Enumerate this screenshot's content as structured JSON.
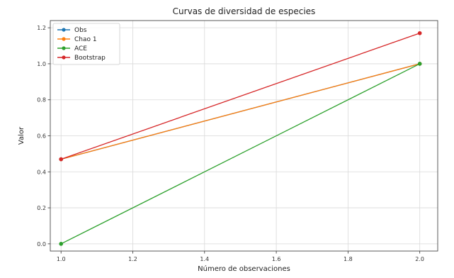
{
  "chart_data": {
    "type": "line",
    "title": "Curvas de diversidad de especies",
    "xlabel": "Número de observaciones",
    "ylabel": "Valor",
    "x": [
      1.0,
      2.0
    ],
    "xlim": [
      0.97,
      2.05
    ],
    "ylim": [
      -0.04,
      1.24
    ],
    "xticks": [
      1.0,
      1.2,
      1.4,
      1.6,
      1.8,
      2.0
    ],
    "yticks": [
      0.0,
      0.2,
      0.4,
      0.6,
      0.8,
      1.0,
      1.2
    ],
    "grid": true,
    "legend_position": "top-left",
    "series": [
      {
        "name": "Obs",
        "values": [
          0.47,
          1.0
        ],
        "color": "#1f77b4",
        "marker": "circle"
      },
      {
        "name": "Chao 1",
        "values": [
          0.47,
          1.0
        ],
        "color": "#ff7f0e",
        "marker": "circle"
      },
      {
        "name": "ACE",
        "values": [
          0.0,
          1.0
        ],
        "color": "#2ca02c",
        "marker": "circle"
      },
      {
        "name": "Bootstrap",
        "values": [
          0.47,
          1.17
        ],
        "color": "#d62728",
        "marker": "circle"
      }
    ]
  }
}
